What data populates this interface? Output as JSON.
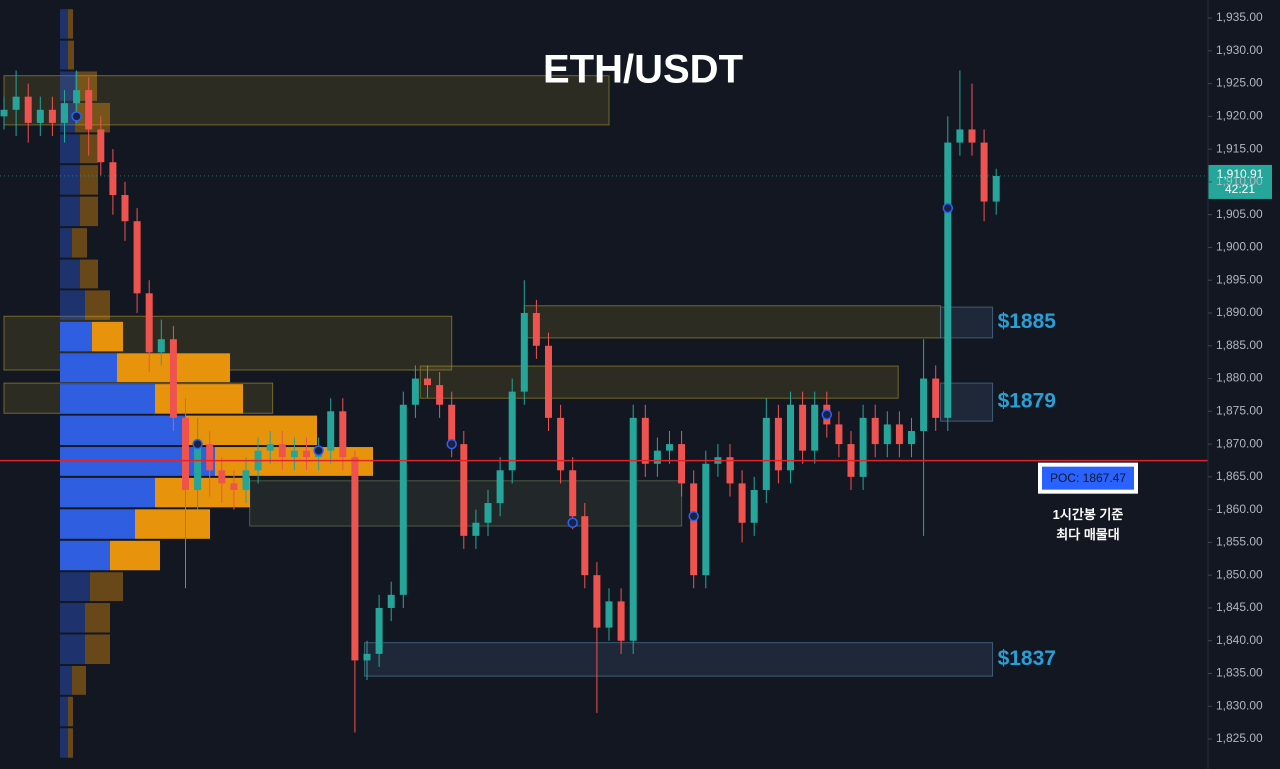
{
  "chart_data": {
    "type": "candlestick",
    "title": "ETH/USDT",
    "ylim": [
      1820.43,
      1937.75
    ],
    "yticks": [
      {
        "value": 1825,
        "label": "1,825.00"
      },
      {
        "value": 1830,
        "label": "1,830.00"
      },
      {
        "value": 1835,
        "label": "1,835.00"
      },
      {
        "value": 1840,
        "label": "1,840.00"
      },
      {
        "value": 1845,
        "label": "1,845.00"
      },
      {
        "value": 1850,
        "label": "1,850.00"
      },
      {
        "value": 1855,
        "label": "1,855.00"
      },
      {
        "value": 1860,
        "label": "1,860.00"
      },
      {
        "value": 1865,
        "label": "1,865.00"
      },
      {
        "value": 1870,
        "label": "1,870.00"
      },
      {
        "value": 1875,
        "label": "1,875.00"
      },
      {
        "value": 1880,
        "label": "1,880.00"
      },
      {
        "value": 1885,
        "label": "1,885.00"
      },
      {
        "value": 1890,
        "label": "1,890.00"
      },
      {
        "value": 1895,
        "label": "1,895.00"
      },
      {
        "value": 1900,
        "label": "1,900.00"
      },
      {
        "value": 1905,
        "label": "1,905.00"
      },
      {
        "value": 1910,
        "label": "1,910.00"
      },
      {
        "value": 1915,
        "label": "1,915.00"
      },
      {
        "value": 1920,
        "label": "1,920.00"
      },
      {
        "value": 1925,
        "label": "1,925.00"
      },
      {
        "value": 1930,
        "label": "1,930.00"
      },
      {
        "value": 1935,
        "label": "1,935.00"
      }
    ],
    "up_color": "#26a69a",
    "down_color": "#ef5350",
    "open": [
      1920,
      1921,
      1923,
      1919,
      1921,
      1919,
      1922,
      1924,
      1918,
      1913,
      1908,
      1904,
      1893,
      1884,
      1886,
      1874,
      1863,
      1870,
      1866,
      1864,
      1863,
      1866,
      1869,
      1870,
      1868,
      1869,
      1868,
      1869,
      1875,
      1868,
      1837,
      1838,
      1845,
      1847,
      1876,
      1880,
      1879,
      1876,
      1870,
      1856,
      1858,
      1861,
      1866,
      1878,
      1890,
      1885,
      1874,
      1866,
      1859,
      1850,
      1842,
      1846,
      1840,
      1874,
      1867,
      1869,
      1870,
      1864,
      1850,
      1867,
      1868,
      1864,
      1858,
      1863,
      1874,
      1866,
      1876,
      1869,
      1876,
      1873,
      1870,
      1865,
      1874,
      1870,
      1873,
      1870,
      1872,
      1880,
      1874,
      1916,
      1918,
      1916,
      1907
    ],
    "high": [
      1923,
      1927,
      1925,
      1923,
      1923,
      1924,
      1927,
      1926,
      1920,
      1915,
      1910,
      1906,
      1895,
      1889,
      1888,
      1877,
      1874,
      1872,
      1868,
      1866,
      1868,
      1871,
      1872,
      1872,
      1871,
      1871,
      1871,
      1877,
      1877,
      1869,
      1840,
      1847,
      1849,
      1878,
      1882,
      1882,
      1881,
      1878,
      1872,
      1860,
      1863,
      1868,
      1880,
      1895,
      1892,
      1887,
      1876,
      1868,
      1861,
      1852,
      1848,
      1848,
      1876,
      1876,
      1871,
      1872,
      1872,
      1866,
      1869,
      1870,
      1870,
      1866,
      1865,
      1877,
      1876,
      1878,
      1878,
      1878,
      1878,
      1875,
      1872,
      1876,
      1876,
      1875,
      1875,
      1874,
      1886,
      1882,
      1920,
      1927,
      1925,
      1918,
      1912
    ],
    "low": [
      1918,
      1917,
      1916,
      1917,
      1917,
      1916,
      1919,
      1914,
      1911,
      1905,
      1901,
      1890,
      1881,
      1882,
      1872,
      1848,
      1860,
      1862,
      1861,
      1860,
      1861,
      1864,
      1867,
      1866,
      1866,
      1866,
      1866,
      1867,
      1866,
      1826,
      1834,
      1836,
      1843,
      1845,
      1874,
      1877,
      1874,
      1868,
      1854,
      1854,
      1856,
      1859,
      1864,
      1876,
      1883,
      1872,
      1864,
      1857,
      1848,
      1829,
      1840,
      1838,
      1838,
      1865,
      1865,
      1867,
      1862,
      1848,
      1848,
      1865,
      1862,
      1855,
      1856,
      1861,
      1864,
      1864,
      1867,
      1867,
      1871,
      1868,
      1863,
      1863,
      1868,
      1868,
      1868,
      1868,
      1856,
      1872,
      1872,
      1914,
      1914,
      1904,
      1905
    ],
    "close": [
      1921,
      1923,
      1919,
      1921,
      1919,
      1922,
      1924,
      1918,
      1913,
      1908,
      1904,
      1893,
      1884,
      1886,
      1874,
      1863,
      1870,
      1866,
      1864,
      1863,
      1866,
      1869,
      1870,
      1868,
      1869,
      1868,
      1869,
      1875,
      1868,
      1837,
      1838,
      1845,
      1847,
      1876,
      1880,
      1879,
      1876,
      1870,
      1856,
      1858,
      1861,
      1866,
      1878,
      1890,
      1885,
      1874,
      1866,
      1859,
      1850,
      1842,
      1846,
      1840,
      1874,
      1867,
      1869,
      1870,
      1864,
      1850,
      1867,
      1868,
      1864,
      1858,
      1863,
      1874,
      1866,
      1876,
      1869,
      1876,
      1873,
      1870,
      1865,
      1874,
      1870,
      1873,
      1870,
      1872,
      1880,
      1874,
      1916,
      1918,
      1916,
      1907,
      1910.91
    ],
    "markers": {
      "index": [
        6,
        16,
        26,
        37,
        47,
        57,
        68,
        78
      ],
      "values": [
        1920,
        1870,
        1869,
        1870,
        1858,
        1859,
        1874.5,
        1906
      ]
    },
    "profile": {
      "price_bins": [
        1936.5,
        1931.7,
        1927.0,
        1922.2,
        1917.4,
        1912.7,
        1907.9,
        1903.1,
        1898.3,
        1893.6,
        1888.8,
        1884.0,
        1879.3,
        1874.5,
        1869.7,
        1865.0,
        1860.2,
        1855.4,
        1850.6,
        1845.9,
        1841.1,
        1836.3,
        1831.6,
        1826.8,
        1822.0
      ],
      "buy": [
        8,
        8,
        15,
        15,
        20,
        20,
        20,
        12,
        20,
        25,
        32,
        57,
        95,
        125,
        155,
        95,
        75,
        50,
        30,
        25,
        25,
        12,
        8,
        8
      ],
      "sell": [
        5,
        6,
        22,
        35,
        18,
        18,
        18,
        15,
        18,
        25,
        31,
        113,
        88,
        132,
        158,
        95,
        75,
        50,
        33,
        25,
        25,
        14,
        5,
        5
      ],
      "buy_color": "#2f5fe0",
      "sell_color": "#e8930c",
      "value_area": [
        1850.6,
        1888.8
      ]
    },
    "zones": [
      {
        "low": 1918.7,
        "high": 1926.2,
        "from": 0,
        "to": 50,
        "color": "#8a7a2a"
      },
      {
        "low": 1881.3,
        "high": 1889.5,
        "from": 0,
        "to": 37,
        "color": "#8a7a2a"
      },
      {
        "low": 1874.7,
        "high": 1879.3,
        "from": 0,
        "to": 22.2,
        "color": "#8a7a2a"
      },
      {
        "low": 1857.5,
        "high": 1864.4,
        "from": 20.3,
        "to": 56,
        "color": "#5a6a4a"
      },
      {
        "low": 1886.2,
        "high": 1891.1,
        "from": 43,
        "to": 77.4,
        "color": "#8a7a2a"
      },
      {
        "low": 1877.0,
        "high": 1881.9,
        "from": 34.4,
        "to": 73.9,
        "color": "#8a7a2a"
      },
      {
        "low": 1886.2,
        "high": 1890.9,
        "from": 77.4,
        "to": 81.7,
        "color": "#4a6a8a",
        "label": "$1885"
      },
      {
        "low": 1873.5,
        "high": 1879.3,
        "from": 77.4,
        "to": 81.7,
        "color": "#4a6a8a",
        "label": "$1879"
      },
      {
        "low": 1834.6,
        "high": 1839.7,
        "from": 29.8,
        "to": 81.7,
        "color": "#4a6a8a",
        "label": "$1837"
      }
    ],
    "poc": {
      "value": 1867.47,
      "label": "POC: 1867.47",
      "color": "#e0242b"
    },
    "annotation": [
      "1시간봉 기준",
      "최다 매물대"
    ],
    "last_price": {
      "value": 1910.91,
      "label": "1,910.91"
    },
    "countdown": "42:21"
  }
}
